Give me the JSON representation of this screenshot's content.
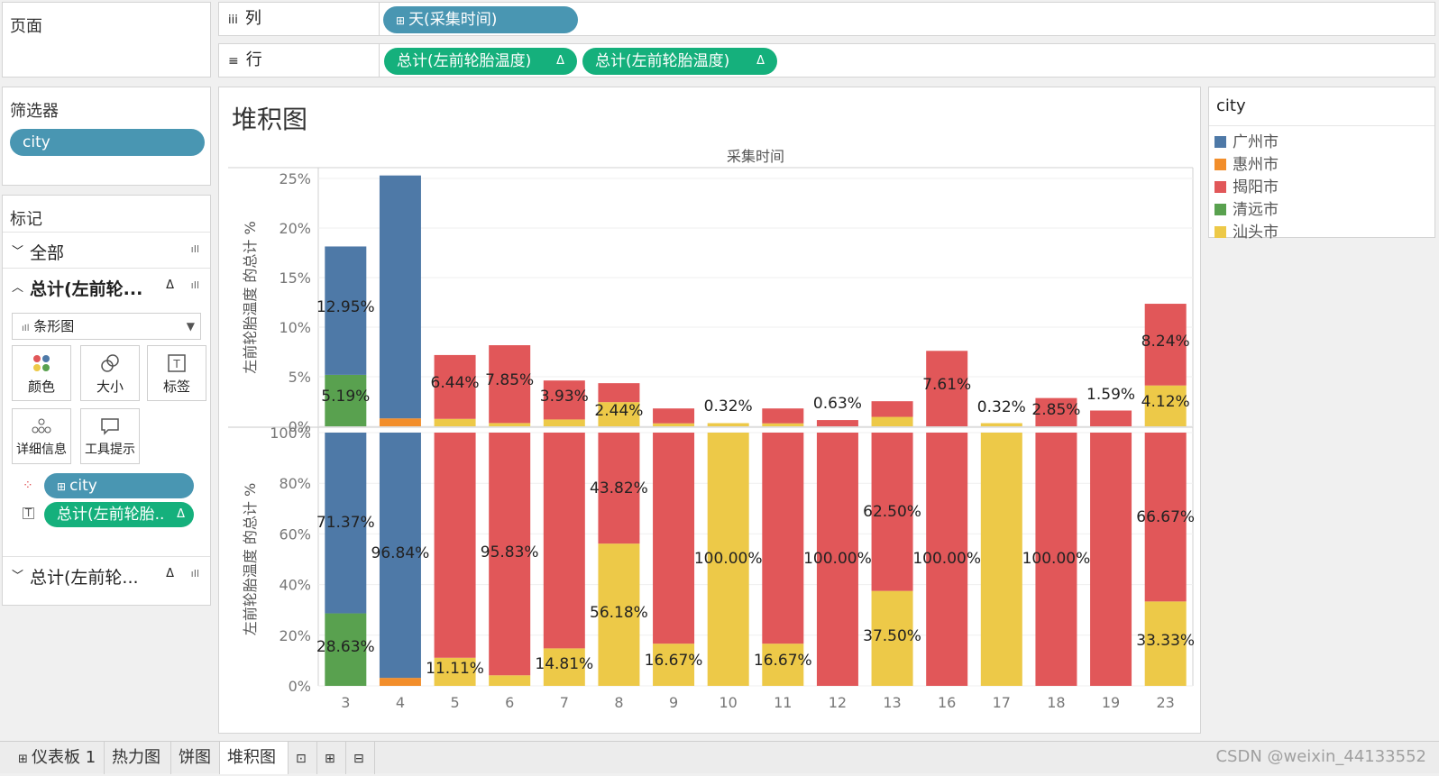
{
  "pages_panel": {
    "title": "页面"
  },
  "columns_shelf": {
    "label": "列",
    "pill": "天(采集时间)"
  },
  "rows_shelf": {
    "label": "行",
    "pills": [
      "总计(左前轮胎温度)",
      "总计(左前轮胎温度)"
    ]
  },
  "filters_panel": {
    "title": "筛选器",
    "pill": "city"
  },
  "marks_panel": {
    "title": "标记",
    "all_label": "全部",
    "card1_label": "总计(左前轮...",
    "mark_type": "条形图",
    "buttons": [
      "颜色",
      "大小",
      "标签",
      "详细信息",
      "工具提示"
    ],
    "pill_city": "city",
    "pill_measure": "总计(左前轮胎..",
    "card2_label": "总计(左前轮..."
  },
  "legend": {
    "title": "city",
    "items": [
      {
        "name": "广州市",
        "color": "#4e79a7"
      },
      {
        "name": "惠州市",
        "color": "#f28e2b"
      },
      {
        "name": "揭阳市",
        "color": "#e15759"
      },
      {
        "name": "清远市",
        "color": "#59a14f"
      },
      {
        "name": "汕头市",
        "color": "#edc948"
      }
    ]
  },
  "sheet_title": "堆积图",
  "chart_data": [
    {
      "type": "bar",
      "stacked": true,
      "title": "采集时间",
      "ylabel": "左前轮胎温度 的总计 %",
      "ylim": [
        0,
        26
      ],
      "yticks": [
        "0%",
        "5%",
        "10%",
        "15%",
        "20%",
        "25%"
      ],
      "categories": [
        "3",
        "4",
        "5",
        "6",
        "7",
        "8",
        "9",
        "10",
        "11",
        "12",
        "13",
        "16",
        "17",
        "18",
        "19",
        "23"
      ],
      "series": [
        {
          "name": "清远市",
          "color": "#59a14f",
          "values": [
            5.19,
            0,
            0,
            0,
            0,
            0,
            0,
            0,
            0,
            0,
            0,
            0,
            0,
            0,
            0,
            0
          ]
        },
        {
          "name": "惠州市",
          "color": "#f28e2b",
          "values": [
            0,
            0.8,
            0,
            0,
            0,
            0,
            0,
            0,
            0,
            0,
            0,
            0,
            0,
            0,
            0,
            0
          ]
        },
        {
          "name": "汕头市",
          "color": "#edc948",
          "values": [
            0,
            0,
            0.75,
            0.33,
            0.69,
            2.44,
            0.3,
            0.32,
            0.3,
            0,
            0.95,
            0,
            0.32,
            0,
            0,
            4.12
          ]
        },
        {
          "name": "广州市",
          "color": "#4e79a7",
          "values": [
            12.95,
            24.5,
            0,
            0,
            0,
            0,
            0,
            0,
            0,
            0,
            0,
            0,
            0,
            0,
            0,
            0
          ]
        },
        {
          "name": "揭阳市",
          "color": "#e15759",
          "values": [
            0,
            0,
            6.44,
            7.85,
            3.93,
            1.91,
            1.5,
            0,
            1.5,
            0.63,
            1.58,
            7.61,
            0,
            2.85,
            1.59,
            8.24
          ]
        }
      ],
      "labels": [
        "12.95%",
        "5.19%",
        "6.44%",
        "7.85%",
        "3.93%",
        "2.44%",
        "0.32%",
        "0.63%",
        "7.61%",
        "0.32%",
        "2.85%",
        "1.59%",
        "8.24%",
        "4.12%"
      ]
    },
    {
      "type": "bar",
      "stacked": true,
      "ylabel": "左前轮胎温度 的总计 %",
      "ylim": [
        0,
        100
      ],
      "yticks": [
        "0%",
        "20%",
        "40%",
        "60%",
        "80%",
        "100%"
      ],
      "categories": [
        "3",
        "4",
        "5",
        "6",
        "7",
        "8",
        "9",
        "10",
        "11",
        "12",
        "13",
        "16",
        "17",
        "18",
        "19",
        "23"
      ],
      "series": [
        {
          "name": "清远市",
          "color": "#59a14f",
          "values": [
            28.63,
            0,
            0,
            0,
            0,
            0,
            0,
            0,
            0,
            0,
            0,
            0,
            0,
            0,
            0,
            0
          ]
        },
        {
          "name": "惠州市",
          "color": "#f28e2b",
          "values": [
            0,
            3.16,
            0,
            0,
            0,
            0,
            0,
            0,
            0,
            0,
            0,
            0,
            0,
            0,
            0,
            0
          ]
        },
        {
          "name": "汕头市",
          "color": "#edc948",
          "values": [
            0,
            0,
            11.11,
            4.17,
            14.81,
            56.18,
            16.67,
            100.0,
            16.67,
            0,
            37.5,
            0,
            100.0,
            0,
            0,
            33.33
          ]
        },
        {
          "name": "广州市",
          "color": "#4e79a7",
          "values": [
            71.37,
            96.84,
            0,
            0,
            0,
            0,
            0,
            0,
            0,
            0,
            0,
            0,
            0,
            0,
            0,
            0
          ]
        },
        {
          "name": "揭阳市",
          "color": "#e15759",
          "values": [
            0,
            0,
            88.89,
            95.83,
            85.19,
            43.82,
            83.33,
            0,
            83.33,
            100.0,
            62.5,
            100.0,
            0,
            100.0,
            100.0,
            66.67
          ]
        }
      ],
      "labels": [
        "71.37%",
        "28.63%",
        "96.84%",
        "11.11%",
        "95.83%",
        "14.81%",
        "43.82%",
        "56.18%",
        "16.67%",
        "100.00%",
        "16.67%",
        "100.00%",
        "62.50%",
        "37.50%",
        "100.00%",
        "100.00%",
        "66.67%",
        "33.33%"
      ]
    }
  ],
  "tabs": [
    "仪表板 1",
    "热力图",
    "饼图",
    "堆积图"
  ],
  "watermark": "CSDN @weixin_44133552"
}
